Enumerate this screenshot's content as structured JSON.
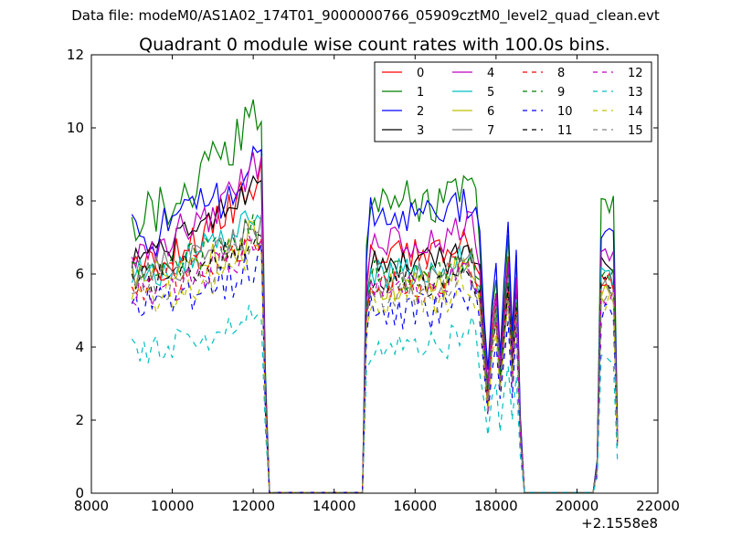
{
  "figure": {
    "suptitle": "Data file: modeM0/AS1A02_174T01_9000000766_05909cztM0_level2_quad_clean.evt"
  },
  "chart_data": {
    "type": "line",
    "title": "Quadrant 0 module wise count rates with 100.0s bins.",
    "xlabel": "",
    "ylabel": "",
    "x_offset_label": "+2.1558e8",
    "xlim": [
      8000,
      22000
    ],
    "ylim": [
      0,
      12
    ],
    "xticks": [
      8000,
      10000,
      12000,
      14000,
      16000,
      18000,
      20000,
      22000
    ],
    "yticks": [
      0,
      2,
      4,
      6,
      8,
      10,
      12
    ],
    "legend_position": "top-right",
    "x_segments": [
      {
        "start": 9000,
        "end": 12200,
        "step": 100
      },
      {
        "start": 12300,
        "end": 12500,
        "step": 100
      },
      {
        "start": 12600,
        "end": 14700,
        "step": 100
      },
      {
        "start": 14800,
        "end": 18600,
        "step": 100
      },
      {
        "start": 18700,
        "end": 20400,
        "step": 100
      },
      {
        "start": 20500,
        "end": 21000,
        "step": 100
      }
    ],
    "series": [
      {
        "name": "0",
        "color": "#ff0000",
        "dashed": false,
        "level": 6.1,
        "peak": 8.7,
        "amp": 0.3,
        "b2": 6.5,
        "b3": 6.0,
        "b4": 5.8
      },
      {
        "name": "1",
        "color": "#008000",
        "dashed": false,
        "level": 7.6,
        "peak": 10.5,
        "amp": 0.45,
        "b2": 8.0,
        "b3": 6.7,
        "b4": 7.8
      },
      {
        "name": "2",
        "color": "#0000ff",
        "dashed": false,
        "level": 7.0,
        "peak": 9.1,
        "amp": 0.4,
        "b2": 7.5,
        "b3": 7.1,
        "b4": 7.3
      },
      {
        "name": "3",
        "color": "#000000",
        "dashed": false,
        "level": 6.5,
        "peak": 8.7,
        "amp": 0.3,
        "b2": 6.3,
        "b3": 6.1,
        "b4": 6.3
      },
      {
        "name": "4",
        "color": "#bf00bf",
        "dashed": false,
        "level": 6.6,
        "peak": 9.1,
        "amp": 0.35,
        "b2": 6.8,
        "b3": 6.2,
        "b4": 6.6
      },
      {
        "name": "5",
        "color": "#00bfbf",
        "dashed": false,
        "level": 6.0,
        "peak": 7.6,
        "amp": 0.3,
        "b2": 6.0,
        "b3": 5.5,
        "b4": 5.9
      },
      {
        "name": "6",
        "color": "#bfbf00",
        "dashed": false,
        "level": 5.8,
        "peak": 7.2,
        "amp": 0.3,
        "b2": 5.7,
        "b3": 5.3,
        "b4": 5.5
      },
      {
        "name": "7",
        "color": "#808080",
        "dashed": false,
        "level": 6.0,
        "peak": 7.3,
        "amp": 0.3,
        "b2": 5.9,
        "b3": 5.6,
        "b4": 5.7
      },
      {
        "name": "8",
        "color": "#ff0000",
        "dashed": true,
        "level": 5.7,
        "peak": 7.0,
        "amp": 0.3,
        "b2": 5.8,
        "b3": 5.4,
        "b4": 5.6
      },
      {
        "name": "9",
        "color": "#008000",
        "dashed": true,
        "level": 6.1,
        "peak": 7.3,
        "amp": 0.3,
        "b2": 6.0,
        "b3": 5.7,
        "b4": 5.9
      },
      {
        "name": "10",
        "color": "#0000ff",
        "dashed": true,
        "level": 5.0,
        "peak": 6.3,
        "amp": 0.35,
        "b2": 5.0,
        "b3": 4.6,
        "b4": 5.0
      },
      {
        "name": "11",
        "color": "#000000",
        "dashed": true,
        "level": 5.8,
        "peak": 7.0,
        "amp": 0.3,
        "b2": 5.8,
        "b3": 5.4,
        "b4": 5.7
      },
      {
        "name": "12",
        "color": "#bf00bf",
        "dashed": true,
        "level": 5.5,
        "peak": 6.8,
        "amp": 0.3,
        "b2": 5.6,
        "b3": 5.2,
        "b4": 5.4
      },
      {
        "name": "13",
        "color": "#00bfbf",
        "dashed": true,
        "level": 3.9,
        "peak": 5.0,
        "amp": 0.3,
        "b2": 4.0,
        "b3": 3.4,
        "b4": 3.6
      },
      {
        "name": "14",
        "color": "#bfbf00",
        "dashed": true,
        "level": 5.3,
        "peak": 6.6,
        "amp": 0.3,
        "b2": 5.3,
        "b3": 5.0,
        "b4": 5.2
      },
      {
        "name": "15",
        "color": "#808080",
        "dashed": true,
        "level": 5.6,
        "peak": 6.8,
        "amp": 0.3,
        "b2": 5.5,
        "b3": 5.2,
        "b4": 5.4
      }
    ]
  }
}
